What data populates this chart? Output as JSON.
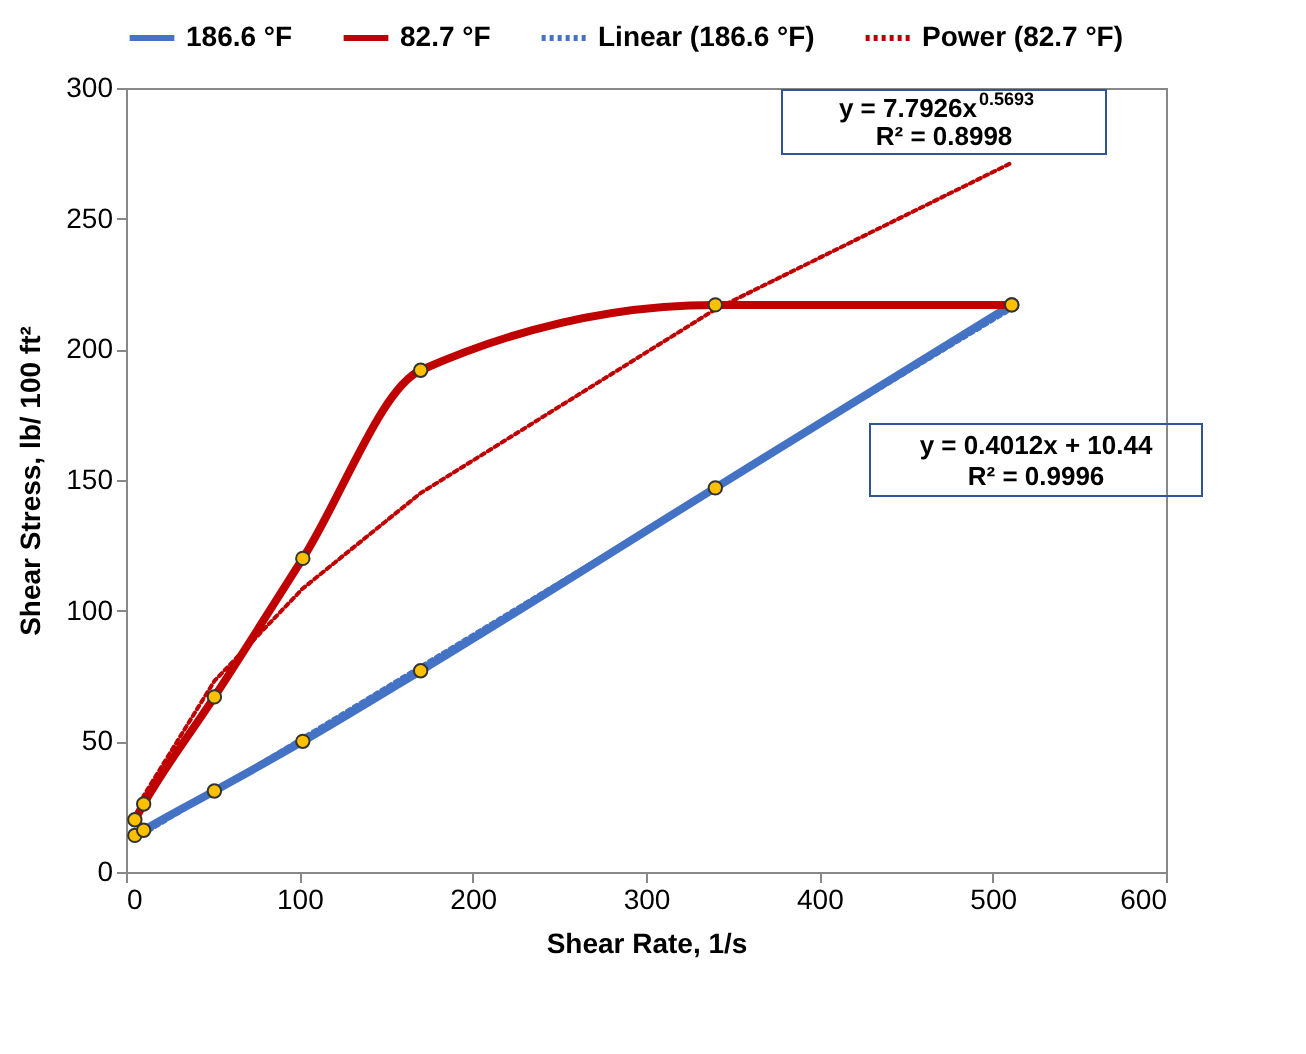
{
  "chart_data": {
    "type": "line",
    "xlabel": "Shear Rate, 1/s",
    "ylabel": "Shear Stress, lb/ 100 ft²",
    "xlim": [
      0,
      600
    ],
    "xticks": [
      0,
      100,
      200,
      300,
      400,
      500,
      600
    ],
    "ylim": [
      0,
      300
    ],
    "yticks": [
      0,
      50,
      100,
      150,
      200,
      250,
      300
    ],
    "legend": "top",
    "series": [
      {
        "name": "186.6 °F",
        "color": "#4472c4",
        "marker": "circle",
        "line_style": "solid",
        "x": [
          5.1,
          10.2,
          51,
          102,
          170,
          340,
          511
        ],
        "values": [
          14,
          16,
          31,
          50,
          77,
          147,
          217
        ]
      },
      {
        "name": "82.7 °F",
        "color": "#c00000",
        "marker": "circle",
        "line_style": "solid",
        "x": [
          5.1,
          10.2,
          51,
          102,
          170,
          340,
          511
        ],
        "values": [
          20,
          26,
          67,
          120,
          192,
          217,
          217
        ]
      },
      {
        "name": "Linear (186.6 °F)",
        "color": "#4472c4",
        "marker": "none",
        "line_style": "dotted",
        "x": [
          5.1,
          511
        ],
        "values": [
          12.5,
          215.5
        ]
      },
      {
        "name": "Power (82.7 °F)",
        "color": "#c00000",
        "marker": "none",
        "line_style": "dotted",
        "x": [
          5.1,
          10.2,
          51,
          102,
          170,
          340,
          511
        ],
        "values": [
          19.7,
          29.2,
          73.1,
          108.5,
          145,
          215.3,
          271.4
        ]
      }
    ],
    "annotations": [
      "y = 7.7926x$^{0.5693}$",
      "R² = 0.8998",
      "y = 0.4012x + 10.44",
      "R² = 0.9996"
    ]
  }
}
